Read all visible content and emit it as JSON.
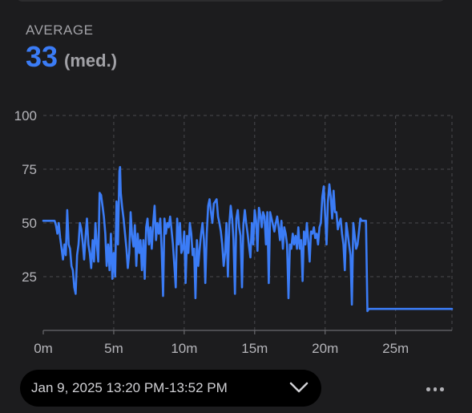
{
  "summary": {
    "label": "AVERAGE",
    "value": "33",
    "unit": "(med.)"
  },
  "colors": {
    "accent": "#3b7cf6",
    "background": "#1c1c1e",
    "grid": "#4a4a4e"
  },
  "chart_data": {
    "type": "line",
    "x_unit": "minutes",
    "xlim": [
      0,
      29
    ],
    "ylim": [
      0,
      100
    ],
    "yticks": [
      25,
      50,
      75,
      100
    ],
    "ytick_labels": [
      "25",
      "50",
      "75",
      "100"
    ],
    "xticks": [
      0,
      5,
      10,
      15,
      20,
      25
    ],
    "xtick_labels": [
      "0m",
      "5m",
      "10m",
      "15m",
      "20m",
      "25m"
    ],
    "grid": true,
    "series": [
      {
        "color": "#3b7cf6",
        "points": [
          [
            0,
            51
          ],
          [
            0.8,
            51
          ],
          [
            0.9,
            49
          ],
          [
            1.0,
            45
          ],
          [
            1.1,
            50
          ],
          [
            1.2,
            43
          ],
          [
            1.3,
            38
          ],
          [
            1.4,
            33
          ],
          [
            1.5,
            40
          ],
          [
            1.6,
            35
          ],
          [
            1.7,
            56
          ],
          [
            1.8,
            40
          ],
          [
            1.9,
            38
          ],
          [
            2.0,
            30
          ],
          [
            2.1,
            28
          ],
          [
            2.2,
            20
          ],
          [
            2.3,
            17
          ],
          [
            2.4,
            35
          ],
          [
            2.5,
            40
          ],
          [
            2.6,
            50
          ],
          [
            2.7,
            47
          ],
          [
            2.8,
            41
          ],
          [
            2.9,
            33
          ],
          [
            3.0,
            44
          ],
          [
            3.1,
            52
          ],
          [
            3.2,
            40
          ],
          [
            3.3,
            36
          ],
          [
            3.4,
            29
          ],
          [
            3.5,
            42
          ],
          [
            3.6,
            32
          ],
          [
            3.7,
            50
          ],
          [
            3.8,
            40
          ],
          [
            3.9,
            32
          ],
          [
            4.0,
            64
          ],
          [
            4.1,
            63
          ],
          [
            4.2,
            58
          ],
          [
            4.3,
            53
          ],
          [
            4.4,
            45
          ],
          [
            4.5,
            30
          ],
          [
            4.6,
            40
          ],
          [
            4.7,
            28
          ],
          [
            4.8,
            45
          ],
          [
            4.9,
            24
          ],
          [
            5.0,
            36
          ],
          [
            5.1,
            25
          ],
          [
            5.2,
            60
          ],
          [
            5.3,
            40
          ],
          [
            5.4,
            74
          ],
          [
            5.45,
            76
          ],
          [
            5.5,
            64
          ],
          [
            5.6,
            57
          ],
          [
            5.7,
            52
          ],
          [
            5.8,
            45
          ],
          [
            5.9,
            38
          ],
          [
            6.0,
            29
          ],
          [
            6.1,
            36
          ],
          [
            6.2,
            55
          ],
          [
            6.3,
            44
          ],
          [
            6.4,
            39
          ],
          [
            6.5,
            49
          ],
          [
            6.6,
            30
          ],
          [
            6.7,
            45
          ],
          [
            6.8,
            36
          ],
          [
            6.9,
            42
          ],
          [
            7.0,
            28
          ],
          [
            7.1,
            42
          ],
          [
            7.2,
            24
          ],
          [
            7.3,
            48
          ],
          [
            7.4,
            52
          ],
          [
            7.5,
            40
          ],
          [
            7.6,
            48
          ],
          [
            7.7,
            38
          ],
          [
            7.8,
            50
          ],
          [
            7.9,
            58
          ],
          [
            8.0,
            42
          ],
          [
            8.1,
            50
          ],
          [
            8.2,
            45
          ],
          [
            8.3,
            52
          ],
          [
            8.4,
            38
          ],
          [
            8.5,
            16
          ],
          [
            8.6,
            52
          ],
          [
            8.7,
            45
          ],
          [
            8.8,
            50
          ],
          [
            8.9,
            48
          ],
          [
            9.0,
            53
          ],
          [
            9.1,
            47
          ],
          [
            9.2,
            40
          ],
          [
            9.3,
            30
          ],
          [
            9.4,
            20
          ],
          [
            9.5,
            52
          ],
          [
            9.6,
            40
          ],
          [
            9.7,
            50
          ],
          [
            9.8,
            36
          ],
          [
            9.9,
            38
          ],
          [
            10.0,
            46
          ],
          [
            10.1,
            22
          ],
          [
            10.2,
            44
          ],
          [
            10.3,
            36
          ],
          [
            10.4,
            50
          ],
          [
            10.5,
            45
          ],
          [
            10.6,
            35
          ],
          [
            10.7,
            38
          ],
          [
            10.8,
            15
          ],
          [
            10.9,
            42
          ],
          [
            11.0,
            30
          ],
          [
            11.1,
            38
          ],
          [
            11.2,
            45
          ],
          [
            11.3,
            50
          ],
          [
            11.4,
            42
          ],
          [
            11.5,
            22
          ],
          [
            11.6,
            45
          ],
          [
            11.7,
            58
          ],
          [
            11.8,
            61
          ],
          [
            11.9,
            55
          ],
          [
            12.0,
            50
          ],
          [
            12.1,
            59
          ],
          [
            12.2,
            60
          ],
          [
            12.3,
            61
          ],
          [
            12.4,
            53
          ],
          [
            12.5,
            50
          ],
          [
            12.6,
            46
          ],
          [
            12.7,
            40
          ],
          [
            12.8,
            30
          ],
          [
            12.9,
            36
          ],
          [
            13.0,
            50
          ],
          [
            13.1,
            25
          ],
          [
            13.2,
            49
          ],
          [
            13.3,
            58
          ],
          [
            13.4,
            52
          ],
          [
            13.5,
            42
          ],
          [
            13.6,
            17
          ],
          [
            13.7,
            52
          ],
          [
            13.8,
            56
          ],
          [
            13.9,
            48
          ],
          [
            14.0,
            44
          ],
          [
            14.1,
            20
          ],
          [
            14.2,
            49
          ],
          [
            14.3,
            56
          ],
          [
            14.4,
            50
          ],
          [
            14.5,
            45
          ],
          [
            14.6,
            39
          ],
          [
            14.7,
            34
          ],
          [
            14.8,
            50
          ],
          [
            14.9,
            40
          ],
          [
            15.0,
            56
          ],
          [
            15.1,
            51
          ],
          [
            15.2,
            37
          ],
          [
            15.3,
            57
          ],
          [
            15.4,
            54
          ],
          [
            15.5,
            48
          ],
          [
            15.6,
            55
          ],
          [
            15.7,
            53
          ],
          [
            15.8,
            40
          ],
          [
            15.9,
            55
          ],
          [
            16.0,
            22
          ],
          [
            16.1,
            55
          ],
          [
            16.2,
            52
          ],
          [
            16.3,
            49
          ],
          [
            16.4,
            46
          ],
          [
            16.5,
            50
          ],
          [
            16.6,
            53
          ],
          [
            16.7,
            48
          ],
          [
            16.8,
            42
          ],
          [
            16.9,
            51
          ],
          [
            17.0,
            38
          ],
          [
            17.1,
            48
          ],
          [
            17.2,
            45
          ],
          [
            17.3,
            40
          ],
          [
            17.4,
            15
          ],
          [
            17.5,
            40
          ],
          [
            17.6,
            38
          ],
          [
            17.7,
            45
          ],
          [
            17.8,
            40
          ],
          [
            17.9,
            44
          ],
          [
            18.0,
            38
          ],
          [
            18.1,
            48
          ],
          [
            18.2,
            38
          ],
          [
            18.3,
            42
          ],
          [
            18.4,
            23
          ],
          [
            18.5,
            46
          ],
          [
            18.6,
            40
          ],
          [
            18.7,
            50
          ],
          [
            18.8,
            42
          ],
          [
            18.9,
            32
          ],
          [
            19.0,
            46
          ],
          [
            19.1,
            45
          ],
          [
            19.2,
            48
          ],
          [
            19.3,
            43
          ],
          [
            19.4,
            45
          ],
          [
            19.5,
            40
          ],
          [
            19.6,
            48
          ],
          [
            19.7,
            50
          ],
          [
            19.8,
            62
          ],
          [
            19.9,
            67
          ],
          [
            20.0,
            54
          ],
          [
            20.1,
            40
          ],
          [
            20.2,
            60
          ],
          [
            20.3,
            68
          ],
          [
            20.4,
            62
          ],
          [
            20.5,
            52
          ],
          [
            20.6,
            65
          ],
          [
            20.7,
            55
          ],
          [
            20.8,
            55
          ],
          [
            20.9,
            47
          ],
          [
            21.0,
            50
          ],
          [
            21.1,
            52
          ],
          [
            21.2,
            45
          ],
          [
            21.3,
            40
          ],
          [
            21.4,
            28
          ],
          [
            21.5,
            50
          ],
          [
            21.6,
            45
          ],
          [
            21.7,
            40
          ],
          [
            21.8,
            35
          ],
          [
            21.9,
            12
          ],
          [
            22.0,
            50
          ],
          [
            22.1,
            44
          ],
          [
            22.2,
            38
          ],
          [
            22.3,
            40
          ],
          [
            22.5,
            52
          ],
          [
            22.6,
            51
          ],
          [
            22.9,
            51
          ],
          [
            23.0,
            9
          ],
          [
            23.1,
            10
          ],
          [
            29,
            10
          ]
        ]
      }
    ]
  },
  "footer": {
    "date_range": "Jan 9, 2025 13:20 PM-13:52 PM",
    "dropdown_icon": "chevron-down-icon",
    "more_icon": "ellipsis-icon"
  }
}
